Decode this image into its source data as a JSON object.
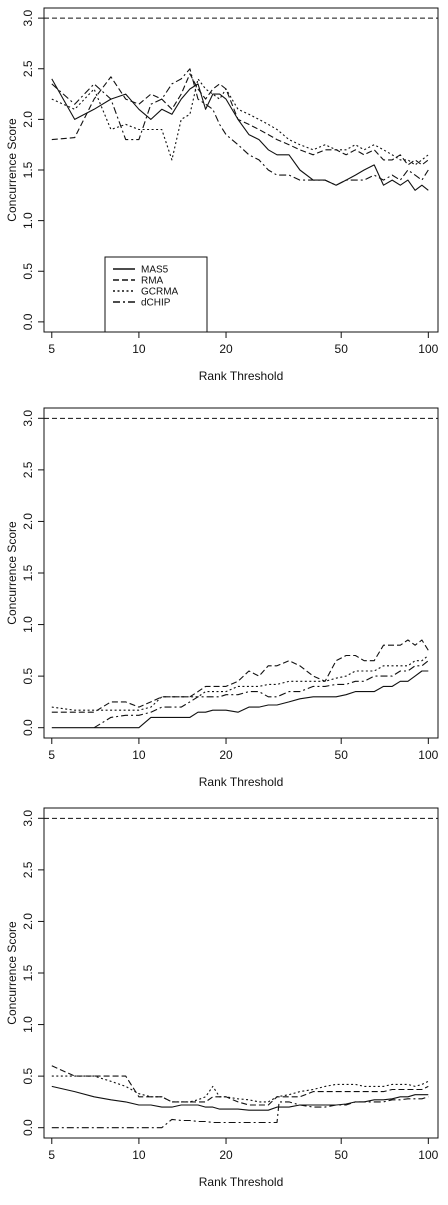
{
  "chart_data": [
    {
      "type": "line",
      "title": "",
      "xlabel": "Rank Threshold",
      "ylabel": "Concurrence Score",
      "x_scale": "log",
      "xlim": [
        4.7,
        108
      ],
      "ylim": [
        -0.1,
        3.1
      ],
      "x_ticks": [
        5,
        10,
        20,
        50,
        100
      ],
      "x_tick_labels": [
        "5",
        "10",
        "20",
        "50",
        "100"
      ],
      "y_ticks": [
        0,
        0.5,
        1,
        1.5,
        2,
        2.5,
        3
      ],
      "y_tick_labels": [
        "0.0",
        "0.5",
        "1.0",
        "1.5",
        "2.0",
        "2.5",
        "3.0"
      ],
      "reference_line": 3.0,
      "legend": {
        "position": "bottom-left",
        "entries": [
          "MAS5",
          "RMA",
          "GCRMA",
          "dCHIP"
        ]
      },
      "series": [
        {
          "name": "MAS5",
          "dash": "solid",
          "x": [
            5,
            6,
            7,
            8,
            9,
            10,
            11,
            12,
            13,
            14,
            15,
            16,
            17,
            18,
            19,
            20,
            22,
            24,
            26,
            28,
            30,
            33,
            36,
            40,
            44,
            48,
            52,
            56,
            60,
            65,
            70,
            75,
            80,
            85,
            90,
            95,
            100
          ],
          "y": [
            2.4,
            2.0,
            2.1,
            2.2,
            2.25,
            2.1,
            2.0,
            2.1,
            2.05,
            2.2,
            2.3,
            2.35,
            2.1,
            2.25,
            2.25,
            2.2,
            2.0,
            1.85,
            1.8,
            1.7,
            1.65,
            1.65,
            1.5,
            1.4,
            1.4,
            1.35,
            1.4,
            1.45,
            1.5,
            1.55,
            1.35,
            1.4,
            1.35,
            1.4,
            1.3,
            1.35,
            1.3
          ]
        },
        {
          "name": "RMA",
          "dash": "dashed",
          "x": [
            5,
            6,
            7,
            8,
            9,
            10,
            11,
            12,
            13,
            14,
            15,
            16,
            17,
            18,
            19,
            20,
            22,
            24,
            26,
            28,
            30,
            33,
            36,
            40,
            44,
            48,
            52,
            56,
            60,
            65,
            70,
            75,
            80,
            85,
            90,
            95,
            100
          ],
          "y": [
            1.8,
            1.82,
            2.2,
            2.42,
            2.2,
            2.15,
            2.25,
            2.2,
            2.1,
            2.25,
            2.45,
            2.3,
            2.2,
            2.3,
            2.35,
            2.3,
            2.0,
            1.95,
            1.9,
            1.85,
            1.8,
            1.75,
            1.7,
            1.65,
            1.7,
            1.7,
            1.65,
            1.7,
            1.65,
            1.7,
            1.6,
            1.6,
            1.65,
            1.55,
            1.6,
            1.55,
            1.6
          ]
        },
        {
          "name": "GCRMA",
          "dash": "dotted",
          "x": [
            5,
            6,
            7,
            8,
            9,
            10,
            11,
            12,
            13,
            14,
            15,
            16,
            17,
            18,
            19,
            20,
            22,
            24,
            26,
            28,
            30,
            33,
            36,
            40,
            44,
            48,
            52,
            56,
            60,
            65,
            70,
            75,
            80,
            85,
            90,
            95,
            100
          ],
          "y": [
            2.2,
            2.1,
            2.3,
            1.9,
            1.95,
            1.9,
            1.9,
            1.9,
            1.6,
            2.0,
            2.05,
            2.4,
            2.3,
            2.25,
            2.2,
            2.3,
            2.1,
            2.05,
            2.0,
            1.95,
            1.9,
            1.8,
            1.75,
            1.7,
            1.75,
            1.7,
            1.7,
            1.75,
            1.7,
            1.75,
            1.7,
            1.65,
            1.6,
            1.6,
            1.55,
            1.6,
            1.65
          ]
        },
        {
          "name": "dCHIP",
          "dash": "dashdot",
          "x": [
            5,
            6,
            7,
            8,
            9,
            10,
            11,
            12,
            13,
            14,
            15,
            16,
            17,
            18,
            19,
            20,
            22,
            24,
            26,
            28,
            30,
            33,
            36,
            40,
            44,
            48,
            52,
            56,
            60,
            65,
            70,
            75,
            80,
            85,
            90,
            95,
            100
          ],
          "y": [
            2.35,
            2.15,
            2.35,
            2.2,
            1.8,
            1.8,
            2.15,
            2.2,
            2.35,
            2.4,
            2.5,
            2.2,
            2.15,
            2.1,
            1.95,
            1.85,
            1.75,
            1.65,
            1.6,
            1.5,
            1.45,
            1.45,
            1.4,
            1.4,
            1.4,
            1.35,
            1.4,
            1.4,
            1.4,
            1.45,
            1.4,
            1.45,
            1.4,
            1.5,
            1.45,
            1.4,
            1.5
          ]
        }
      ]
    },
    {
      "type": "line",
      "title": "",
      "xlabel": "Rank Threshold",
      "ylabel": "Concurrence Score",
      "x_scale": "log",
      "xlim": [
        4.7,
        108
      ],
      "ylim": [
        -0.1,
        3.1
      ],
      "x_ticks": [
        5,
        10,
        20,
        50,
        100
      ],
      "x_tick_labels": [
        "5",
        "10",
        "20",
        "50",
        "100"
      ],
      "y_ticks": [
        0,
        0.5,
        1,
        1.5,
        2,
        2.5,
        3
      ],
      "y_tick_labels": [
        "0.0",
        "0.5",
        "1.0",
        "1.5",
        "2.0",
        "2.5",
        "3.0"
      ],
      "reference_line": 3.0,
      "series": [
        {
          "name": "MAS5",
          "dash": "solid",
          "x": [
            5,
            6,
            7,
            8,
            9,
            10,
            11,
            12,
            13,
            14,
            15,
            16,
            17,
            18,
            19,
            20,
            22,
            24,
            26,
            28,
            30,
            33,
            36,
            40,
            44,
            48,
            52,
            56,
            60,
            65,
            70,
            75,
            80,
            85,
            90,
            95,
            100
          ],
          "y": [
            0,
            0,
            0,
            0,
            0,
            0,
            0.1,
            0.1,
            0.1,
            0.1,
            0.1,
            0.15,
            0.15,
            0.17,
            0.17,
            0.17,
            0.15,
            0.2,
            0.2,
            0.22,
            0.22,
            0.25,
            0.28,
            0.3,
            0.3,
            0.3,
            0.32,
            0.35,
            0.35,
            0.35,
            0.4,
            0.4,
            0.45,
            0.45,
            0.5,
            0.55,
            0.55
          ]
        },
        {
          "name": "RMA",
          "dash": "dashed",
          "x": [
            5,
            6,
            7,
            8,
            9,
            10,
            11,
            12,
            13,
            14,
            15,
            16,
            17,
            18,
            19,
            20,
            22,
            24,
            26,
            28,
            30,
            33,
            36,
            40,
            44,
            48,
            52,
            56,
            60,
            65,
            70,
            75,
            80,
            85,
            90,
            95,
            100
          ],
          "y": [
            0.15,
            0.15,
            0.15,
            0.25,
            0.25,
            0.2,
            0.25,
            0.3,
            0.3,
            0.3,
            0.3,
            0.35,
            0.4,
            0.4,
            0.4,
            0.4,
            0.45,
            0.55,
            0.5,
            0.6,
            0.6,
            0.65,
            0.6,
            0.5,
            0.45,
            0.65,
            0.7,
            0.7,
            0.65,
            0.65,
            0.8,
            0.8,
            0.8,
            0.85,
            0.8,
            0.85,
            0.75
          ]
        },
        {
          "name": "GCRMA",
          "dash": "dotted",
          "x": [
            5,
            6,
            7,
            8,
            9,
            10,
            11,
            12,
            13,
            14,
            15,
            16,
            17,
            18,
            19,
            20,
            22,
            24,
            26,
            28,
            30,
            33,
            36,
            40,
            44,
            48,
            52,
            56,
            60,
            65,
            70,
            75,
            80,
            85,
            90,
            95,
            100
          ],
          "y": [
            0.2,
            0.17,
            0.17,
            0.17,
            0.17,
            0.17,
            0.2,
            0.3,
            0.3,
            0.3,
            0.3,
            0.3,
            0.35,
            0.35,
            0.35,
            0.35,
            0.4,
            0.4,
            0.4,
            0.42,
            0.42,
            0.45,
            0.45,
            0.45,
            0.45,
            0.48,
            0.5,
            0.55,
            0.55,
            0.55,
            0.6,
            0.6,
            0.6,
            0.6,
            0.65,
            0.65,
            0.7
          ]
        },
        {
          "name": "dCHIP",
          "dash": "dashdot",
          "x": [
            7,
            8,
            9,
            10,
            11,
            12,
            13,
            14,
            15,
            16,
            17,
            18,
            19,
            20,
            22,
            24,
            26,
            28,
            30,
            33,
            36,
            40,
            44,
            48,
            52,
            56,
            60,
            65,
            70,
            75,
            80,
            85,
            90,
            95,
            100
          ],
          "y": [
            0,
            0.1,
            0.12,
            0.12,
            0.15,
            0.2,
            0.2,
            0.2,
            0.25,
            0.3,
            0.3,
            0.3,
            0.3,
            0.32,
            0.32,
            0.35,
            0.35,
            0.3,
            0.3,
            0.35,
            0.35,
            0.4,
            0.4,
            0.42,
            0.42,
            0.45,
            0.45,
            0.5,
            0.5,
            0.5,
            0.55,
            0.55,
            0.6,
            0.6,
            0.65
          ]
        }
      ]
    },
    {
      "type": "line",
      "title": "",
      "xlabel": "Rank Threshold",
      "ylabel": "Concurrence Score",
      "x_scale": "log",
      "xlim": [
        4.7,
        108
      ],
      "ylim": [
        -0.1,
        3.1
      ],
      "x_ticks": [
        5,
        10,
        20,
        50,
        100
      ],
      "x_tick_labels": [
        "5",
        "10",
        "20",
        "50",
        "100"
      ],
      "y_ticks": [
        0,
        0.5,
        1,
        1.5,
        2,
        2.5,
        3
      ],
      "y_tick_labels": [
        "0.0",
        "0.5",
        "1.0",
        "1.5",
        "2.0",
        "2.5",
        "3.0"
      ],
      "reference_line": 3.0,
      "series": [
        {
          "name": "MAS5",
          "dash": "solid",
          "x": [
            5,
            6,
            7,
            8,
            9,
            10,
            11,
            12,
            13,
            14,
            15,
            16,
            17,
            18,
            19,
            20,
            22,
            24,
            26,
            28,
            30,
            33,
            36,
            40,
            44,
            48,
            52,
            56,
            60,
            65,
            70,
            75,
            80,
            85,
            90,
            95,
            100
          ],
          "y": [
            0.4,
            0.35,
            0.3,
            0.27,
            0.25,
            0.22,
            0.22,
            0.2,
            0.2,
            0.22,
            0.22,
            0.22,
            0.2,
            0.2,
            0.18,
            0.18,
            0.18,
            0.17,
            0.17,
            0.17,
            0.2,
            0.2,
            0.22,
            0.22,
            0.22,
            0.22,
            0.23,
            0.25,
            0.25,
            0.27,
            0.27,
            0.28,
            0.3,
            0.3,
            0.32,
            0.32,
            0.32
          ]
        },
        {
          "name": "RMA",
          "dash": "dashed",
          "x": [
            5,
            6,
            7,
            8,
            9,
            10,
            11,
            12,
            13,
            14,
            15,
            16,
            17,
            18,
            19,
            20,
            22,
            24,
            26,
            28,
            30,
            33,
            36,
            40,
            44,
            48,
            52,
            56,
            60,
            65,
            70,
            75,
            80,
            85,
            90,
            95,
            100
          ],
          "y": [
            0.6,
            0.5,
            0.5,
            0.5,
            0.5,
            0.3,
            0.3,
            0.3,
            0.25,
            0.25,
            0.25,
            0.25,
            0.25,
            0.3,
            0.3,
            0.3,
            0.25,
            0.22,
            0.22,
            0.22,
            0.3,
            0.3,
            0.3,
            0.35,
            0.35,
            0.35,
            0.35,
            0.35,
            0.35,
            0.35,
            0.35,
            0.37,
            0.37,
            0.37,
            0.37,
            0.37,
            0.4
          ]
        },
        {
          "name": "GCRMA",
          "dash": "dotted",
          "x": [
            5,
            6,
            7,
            8,
            9,
            10,
            11,
            12,
            13,
            14,
            15,
            16,
            17,
            18,
            19,
            20,
            22,
            24,
            26,
            28,
            30,
            33,
            36,
            40,
            44,
            48,
            52,
            56,
            60,
            65,
            70,
            75,
            80,
            85,
            90,
            95,
            100
          ],
          "y": [
            0.5,
            0.5,
            0.5,
            0.45,
            0.4,
            0.33,
            0.3,
            0.3,
            0.25,
            0.25,
            0.25,
            0.27,
            0.3,
            0.4,
            0.3,
            0.3,
            0.28,
            0.27,
            0.25,
            0.25,
            0.3,
            0.32,
            0.35,
            0.37,
            0.4,
            0.42,
            0.42,
            0.42,
            0.4,
            0.4,
            0.4,
            0.42,
            0.42,
            0.42,
            0.4,
            0.42,
            0.45
          ]
        },
        {
          "name": "dCHIP",
          "dash": "dashdot",
          "x": [
            5,
            6,
            7,
            8,
            9,
            10,
            11,
            12,
            13,
            14,
            15,
            16,
            17,
            18,
            19,
            20,
            22,
            24,
            26,
            28,
            30,
            30.5,
            33,
            36,
            40,
            44,
            48,
            52,
            56,
            60,
            65,
            70,
            75,
            80,
            85,
            90,
            95,
            100
          ],
          "y": [
            0,
            0,
            0,
            0,
            0,
            0,
            0,
            0,
            0.08,
            0.07,
            0.07,
            0.06,
            0.06,
            0.05,
            0.05,
            0.05,
            0.05,
            0.05,
            0.05,
            0.05,
            0.05,
            0.25,
            0.25,
            0.22,
            0.2,
            0.2,
            0.22,
            0.22,
            0.25,
            0.25,
            0.25,
            0.25,
            0.27,
            0.27,
            0.28,
            0.28,
            0.28,
            0.3
          ]
        }
      ]
    }
  ]
}
